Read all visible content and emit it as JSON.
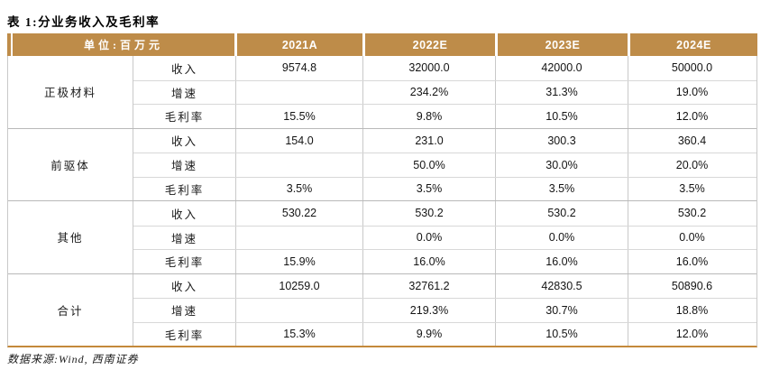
{
  "title": "表 1:分业务收入及毛利率",
  "colors": {
    "header_bg": "#BE8C49",
    "bottom_rule": "#C4893B"
  },
  "table": {
    "unit_label": "单位:百万元",
    "columns": [
      "2021A",
      "2022E",
      "2023E",
      "2024E"
    ],
    "groups": [
      {
        "name": "正极材料",
        "rows": [
          {
            "label": "收入",
            "values": [
              "9574.8",
              "32000.0",
              "42000.0",
              "50000.0"
            ]
          },
          {
            "label": "增速",
            "values": [
              "",
              "234.2%",
              "31.3%",
              "19.0%"
            ]
          },
          {
            "label": "毛利率",
            "values": [
              "15.5%",
              "9.8%",
              "10.5%",
              "12.0%"
            ]
          }
        ]
      },
      {
        "name": "前驱体",
        "rows": [
          {
            "label": "收入",
            "values": [
              "154.0",
              "231.0",
              "300.3",
              "360.4"
            ]
          },
          {
            "label": "增速",
            "values": [
              "",
              "50.0%",
              "30.0%",
              "20.0%"
            ]
          },
          {
            "label": "毛利率",
            "values": [
              "3.5%",
              "3.5%",
              "3.5%",
              "3.5%"
            ]
          }
        ]
      },
      {
        "name": "其他",
        "rows": [
          {
            "label": "收入",
            "values": [
              "530.22",
              "530.2",
              "530.2",
              "530.2"
            ]
          },
          {
            "label": "增速",
            "values": [
              "",
              "0.0%",
              "0.0%",
              "0.0%"
            ]
          },
          {
            "label": "毛利率",
            "values": [
              "15.9%",
              "16.0%",
              "16.0%",
              "16.0%"
            ]
          }
        ]
      },
      {
        "name": "合计",
        "rows": [
          {
            "label": "收入",
            "values": [
              "10259.0",
              "32761.2",
              "42830.5",
              "50890.6"
            ]
          },
          {
            "label": "增速",
            "values": [
              "",
              "219.3%",
              "30.7%",
              "18.8%"
            ]
          },
          {
            "label": "毛利率",
            "values": [
              "15.3%",
              "9.9%",
              "10.5%",
              "12.0%"
            ]
          }
        ]
      }
    ]
  },
  "footer": {
    "source": "数据来源:Wind, 西南证券"
  }
}
